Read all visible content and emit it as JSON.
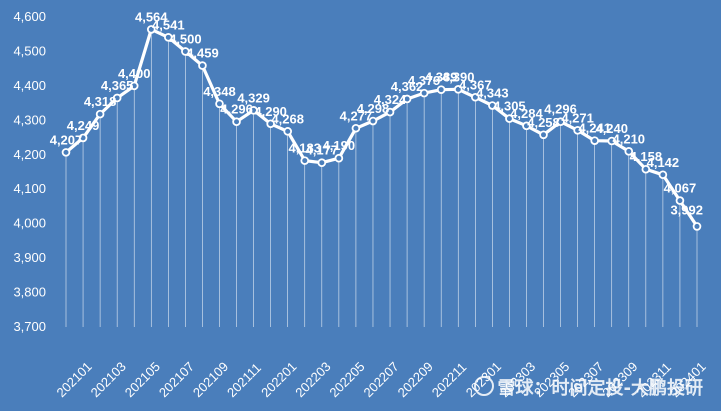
{
  "colors": {
    "background": "#4a7ebb",
    "line": "#ffffff",
    "marker_fill": "#4a7ebb",
    "drop_lines": "#ffffff",
    "text": "#ffffff"
  },
  "watermark": {
    "text": "雪球：时间定投-大鹏投研",
    "icon": "snowball-logo-icon"
  },
  "chart_data": {
    "type": "line",
    "title": "",
    "xlabel": "",
    "ylabel": "",
    "ylim": [
      3700,
      4600
    ],
    "yticks": [
      "3,700",
      "3,800",
      "3,900",
      "4,000",
      "4,100",
      "4,200",
      "4,300",
      "4,400",
      "4,500",
      "4,600"
    ],
    "grid": false,
    "drop_lines": true,
    "x": [
      "202101",
      "202102",
      "202103",
      "202104",
      "202105",
      "202106",
      "202107",
      "202108",
      "202109",
      "202110",
      "202111",
      "202112",
      "202201",
      "202202",
      "202203",
      "202204",
      "202205",
      "202206",
      "202207",
      "202208",
      "202209",
      "202210",
      "202211",
      "202212",
      "202301",
      "202302",
      "202303",
      "202304",
      "202305",
      "202306",
      "202307",
      "202308",
      "202309",
      "202310",
      "202311",
      "202312",
      "202401",
      "202402"
    ],
    "xtick_labels": [
      "202101",
      "202103",
      "202105",
      "202107",
      "202109",
      "202111",
      "202201",
      "202203",
      "202205",
      "202207",
      "202209",
      "202211",
      "202301",
      "202303",
      "202305",
      "202307",
      "202309",
      "202311",
      "202401"
    ],
    "values": [
      4207,
      4249,
      4318,
      4365,
      4400,
      4564,
      4541,
      4500,
      4459,
      4348,
      4296,
      4329,
      4290,
      4268,
      4183,
      4177,
      4190,
      4277,
      4298,
      4324,
      4362,
      4379,
      4389,
      4390,
      4367,
      4343,
      4305,
      4284,
      4258,
      4296,
      4271,
      4241,
      4240,
      4210,
      4158,
      4142,
      4067,
      3992
    ],
    "data_labels": [
      "4,207",
      "4,249",
      "4,318",
      "4,365",
      "4,400",
      "4,564",
      "4,541",
      "4,500",
      "4,459",
      "4,348",
      "4,296",
      "4,329",
      "4,290",
      "4,268",
      "4,183",
      "4,177",
      "4,190",
      "4,277",
      "4,298",
      "4,324",
      "4,362",
      "4,379",
      "4,389",
      "4,390",
      "4,367",
      "4,343",
      "4,305",
      "4,284",
      "4,258",
      "4,296",
      "4,271",
      "4,241",
      "4,240",
      "4,210",
      "4,158",
      "4,142",
      "4,067",
      "3,992"
    ]
  }
}
